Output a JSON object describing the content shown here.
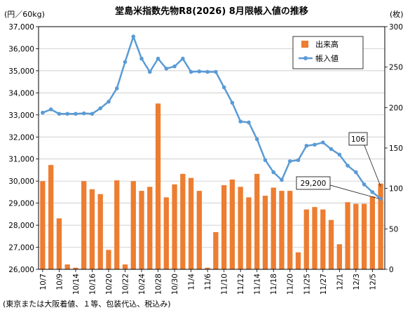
{
  "chart_data": {
    "type": "bar+line",
    "title": "堂島米指数先物R8(2026) 8月限帳入値の推移",
    "y_left_unit": "(円／60kg)",
    "y_right_unit": "(枚)",
    "footnote": "(東京または大阪着値、１等、包装代込、税込み)",
    "y_left_range": [
      26000,
      37000
    ],
    "y_left_ticks": [
      "26,000",
      "27,000",
      "28,000",
      "29,000",
      "30,000",
      "31,000",
      "32,000",
      "33,000",
      "34,000",
      "35,000",
      "36,000",
      "37,000"
    ],
    "y_right_range": [
      0,
      300
    ],
    "y_right_ticks": [
      "0",
      "50",
      "100",
      "150",
      "200",
      "250",
      "300"
    ],
    "x_tick_labels": [
      "10/7",
      "10/9",
      "10/14",
      "10/16",
      "10/20",
      "10/22",
      "10/24",
      "10/28",
      "10/30",
      "11/4",
      "11/6",
      "11/10",
      "11/12",
      "11/14",
      "11/18",
      "11/20",
      "11/25",
      "11/27",
      "12/1",
      "12/3",
      "12/5"
    ],
    "legend": {
      "bar": "出来高",
      "line": "帳入値",
      "position": "top-right"
    },
    "series": [
      {
        "name": "出来高",
        "axis": "right",
        "color": "#ED7D31",
        "values": [
          109,
          129,
          63,
          6,
          2,
          109,
          99,
          93,
          24,
          110,
          6,
          109,
          97,
          102,
          205,
          89,
          105,
          118,
          113,
          97,
          2,
          46,
          104,
          111,
          102,
          89,
          118,
          91,
          101,
          97,
          97,
          21,
          74,
          77,
          74,
          61,
          31,
          83,
          81,
          81,
          90,
          106
        ]
      },
      {
        "name": "帳入値",
        "axis": "left",
        "color": "#5B9BD5",
        "values": [
          33100,
          33250,
          33050,
          33050,
          33050,
          33070,
          33050,
          33300,
          33600,
          34200,
          35400,
          36550,
          35550,
          34950,
          35550,
          35100,
          35200,
          35550,
          34950,
          34970,
          34950,
          34950,
          34250,
          33550,
          32700,
          32660,
          31900,
          30950,
          30400,
          30050,
          30900,
          30950,
          31600,
          31650,
          31750,
          31450,
          31200,
          30700,
          30400,
          29850,
          29500,
          29200
        ]
      }
    ],
    "annotations": [
      {
        "text": "106",
        "target": "出来高",
        "index": 41
      },
      {
        "text": "29,200",
        "target": "帳入値",
        "index": 41
      }
    ]
  }
}
